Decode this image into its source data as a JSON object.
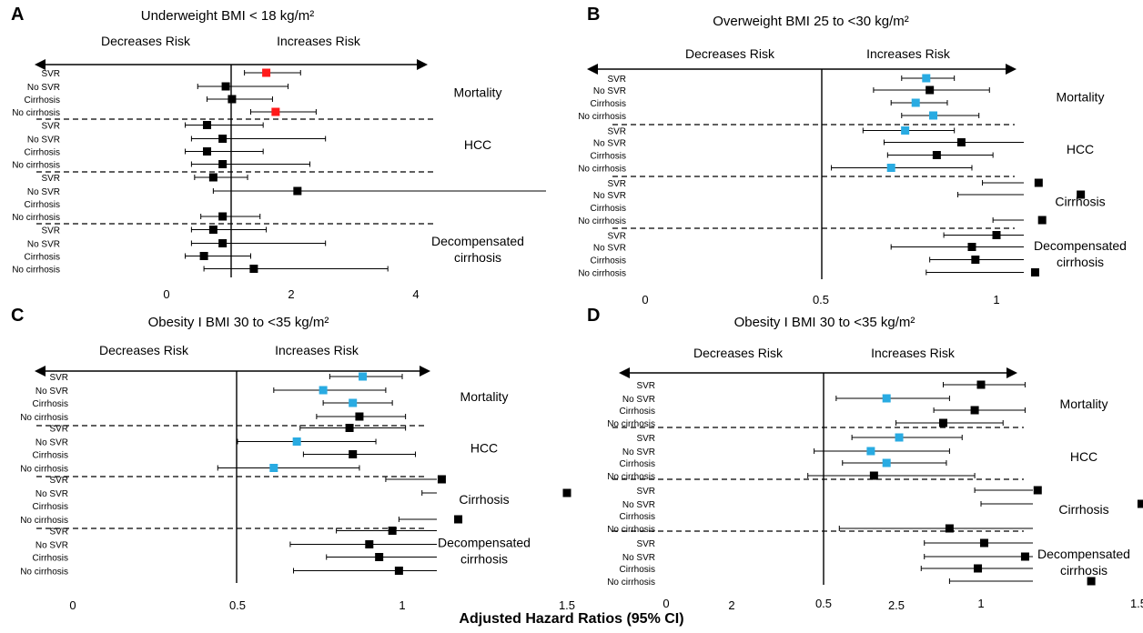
{
  "figure": {
    "xlabel": "Adjusted Hazard Ratios (95% CI)",
    "decreases_label": "Decreases Risk",
    "increases_label": "Increases Risk"
  },
  "colors": {
    "significant": "#ff1a1a",
    "highlight": "#29abe2",
    "default": "#000000"
  },
  "chart_data": [
    {
      "type": "forest",
      "panel": "A",
      "title": "Underweight BMI < 18 kg/m²",
      "xticks": [
        0,
        2,
        4
      ],
      "xlim": [
        0,
        4
      ],
      "reference": 1,
      "groups": [
        {
          "name": "Mortality",
          "rows": [
            {
              "label": "SVR",
              "value": 1.6,
              "lo": 1.25,
              "hi": 2.15,
              "color": "red"
            },
            {
              "label": "No SVR",
              "value": 0.95,
              "lo": 0.5,
              "hi": 1.95,
              "color": "black"
            },
            {
              "label": "Cirrhosis",
              "value": 1.05,
              "lo": 0.65,
              "hi": 1.7,
              "color": "black"
            },
            {
              "label": "No cirrhosis",
              "value": 1.75,
              "lo": 1.35,
              "hi": 2.4,
              "color": "red"
            }
          ]
        },
        {
          "name": "HCC",
          "rows": [
            {
              "label": "SVR",
              "value": 0.65,
              "lo": 0.3,
              "hi": 1.55,
              "color": "black"
            },
            {
              "label": "No SVR",
              "value": 0.9,
              "lo": 0.4,
              "hi": 2.55,
              "color": "black"
            },
            {
              "label": "Cirrhosis",
              "value": 0.65,
              "lo": 0.3,
              "hi": 1.55,
              "color": "black"
            },
            {
              "label": "No cirrhosis",
              "value": 0.9,
              "lo": 0.4,
              "hi": 2.3,
              "color": "black"
            }
          ]
        },
        {
          "name": "",
          "rows": [
            {
              "label": "SVR",
              "value": 0.75,
              "lo": 0.45,
              "hi": 1.3,
              "color": "black"
            },
            {
              "label": "No SVR",
              "value": 2.1,
              "lo": 0.75,
              "hi": 6.2,
              "color": "black"
            },
            {
              "label": "Cirrhosis",
              "value": null,
              "lo": null,
              "hi": null,
              "color": "black"
            },
            {
              "label": "No cirrhosis",
              "value": 0.9,
              "lo": 0.55,
              "hi": 1.5,
              "color": "black"
            }
          ]
        },
        {
          "name": "Decompensated cirrhosis",
          "rows": [
            {
              "label": "SVR",
              "value": 0.75,
              "lo": 0.4,
              "hi": 1.6,
              "color": "black"
            },
            {
              "label": "No SVR",
              "value": 0.9,
              "lo": 0.4,
              "hi": 2.55,
              "color": "black"
            },
            {
              "label": "Cirrhosis",
              "value": 0.6,
              "lo": 0.3,
              "hi": 1.35,
              "color": "black"
            },
            {
              "label": "No cirrhosis",
              "value": 1.4,
              "lo": 0.6,
              "hi": 3.55,
              "color": "black"
            }
          ]
        }
      ]
    },
    {
      "type": "forest",
      "panel": "B",
      "title": "Overweight BMI 25 to <30 kg/m²",
      "xticks": [
        0,
        0.5,
        1,
        1.5,
        2,
        2.5
      ],
      "xlim": [
        0,
        2.5
      ],
      "reference": 1,
      "groups": [
        {
          "name": "Mortality",
          "rows": [
            {
              "label": "SVR",
              "value": 0.8,
              "lo": 0.73,
              "hi": 0.88,
              "color": "blue"
            },
            {
              "label": "No SVR",
              "value": 0.81,
              "lo": 0.65,
              "hi": 0.98,
              "color": "black"
            },
            {
              "label": "Cirrhosis",
              "value": 0.77,
              "lo": 0.7,
              "hi": 0.86,
              "color": "blue"
            },
            {
              "label": "No cirrhosis",
              "value": 0.82,
              "lo": 0.73,
              "hi": 0.95,
              "color": "blue"
            }
          ]
        },
        {
          "name": "HCC",
          "rows": [
            {
              "label": "SVR",
              "value": 0.74,
              "lo": 0.62,
              "hi": 0.88,
              "color": "blue"
            },
            {
              "label": "No SVR",
              "value": 0.9,
              "lo": 0.68,
              "hi": 1.19,
              "color": "black"
            },
            {
              "label": "Cirrhosis",
              "value": 0.83,
              "lo": 0.69,
              "hi": 0.99,
              "color": "black"
            },
            {
              "label": "No cirrhosis",
              "value": 0.7,
              "lo": 0.53,
              "hi": 0.93,
              "color": "blue"
            }
          ]
        },
        {
          "name": "Cirrhosis",
          "rows": [
            {
              "label": "SVR",
              "value": 1.12,
              "lo": 0.96,
              "hi": 1.31,
              "color": "black"
            },
            {
              "label": "No SVR",
              "value": 1.24,
              "lo": 0.89,
              "hi": 1.74,
              "color": "black"
            },
            {
              "label": "Cirrhosis",
              "value": null,
              "lo": null,
              "hi": null,
              "color": "black"
            },
            {
              "label": "No cirrhosis",
              "value": 1.13,
              "lo": 0.99,
              "hi": 1.3,
              "color": "black"
            }
          ]
        },
        {
          "name": "Decompensated cirrhosis",
          "rows": [
            {
              "label": "SVR",
              "value": 1.0,
              "lo": 0.85,
              "hi": 1.2,
              "color": "black"
            },
            {
              "label": "No SVR",
              "value": 0.93,
              "lo": 0.7,
              "hi": 1.26,
              "color": "black"
            },
            {
              "label": "Cirrhosis",
              "value": 0.94,
              "lo": 0.81,
              "hi": 1.1,
              "color": "black"
            },
            {
              "label": "No cirrhosis",
              "value": 1.11,
              "lo": 0.8,
              "hi": 1.56,
              "color": "black"
            }
          ]
        }
      ]
    },
    {
      "type": "forest",
      "panel": "C",
      "title": "Obesity I BMI 30 to <35 kg/m²",
      "xticks": [
        0,
        0.5,
        1,
        1.5,
        2,
        2.5
      ],
      "xlim": [
        0,
        2.5
      ],
      "reference": 1,
      "groups": [
        {
          "name": "Mortality",
          "rows": [
            {
              "label": "SVR",
              "value": 0.88,
              "lo": 0.78,
              "hi": 1.0,
              "color": "blue"
            },
            {
              "label": "No SVR",
              "value": 0.76,
              "lo": 0.61,
              "hi": 0.95,
              "color": "blue"
            },
            {
              "label": "Cirrhosis",
              "value": 0.85,
              "lo": 0.76,
              "hi": 0.97,
              "color": "blue"
            },
            {
              "label": "No cirrhosis",
              "value": 0.87,
              "lo": 0.74,
              "hi": 1.01,
              "color": "black"
            }
          ]
        },
        {
          "name": "HCC",
          "rows": [
            {
              "label": "SVR",
              "value": 0.84,
              "lo": 0.69,
              "hi": 1.01,
              "color": "black"
            },
            {
              "label": "No SVR",
              "value": 0.68,
              "lo": 0.5,
              "hi": 0.92,
              "color": "blue"
            },
            {
              "label": "Cirrhosis",
              "value": 0.85,
              "lo": 0.7,
              "hi": 1.04,
              "color": "black"
            },
            {
              "label": "No cirrhosis",
              "value": 0.61,
              "lo": 0.44,
              "hi": 0.87,
              "color": "blue"
            }
          ]
        },
        {
          "name": "Cirrhosis",
          "rows": [
            {
              "label": "SVR",
              "value": 1.12,
              "lo": 0.95,
              "hi": 1.34,
              "color": "black"
            },
            {
              "label": "No SVR",
              "value": 1.5,
              "lo": 1.06,
              "hi": 2.12,
              "color": "black"
            },
            {
              "label": "Cirrhosis",
              "value": null,
              "lo": null,
              "hi": null,
              "color": "black"
            },
            {
              "label": "No cirrhosis",
              "value": 1.17,
              "lo": 0.99,
              "hi": 1.38,
              "color": "black"
            }
          ]
        },
        {
          "name": "Decompensated cirrhosis",
          "rows": [
            {
              "label": "SVR",
              "value": 0.97,
              "lo": 0.8,
              "hi": 1.17,
              "color": "black"
            },
            {
              "label": "No SVR",
              "value": 0.9,
              "lo": 0.66,
              "hi": 1.22,
              "color": "black"
            },
            {
              "label": "Cirrhosis",
              "value": 0.93,
              "lo": 0.77,
              "hi": 1.11,
              "color": "black"
            },
            {
              "label": "No cirrhosis",
              "value": 0.99,
              "lo": 0.67,
              "hi": 1.46,
              "color": "black"
            }
          ]
        }
      ]
    },
    {
      "type": "forest",
      "panel": "D",
      "title": "Obesity I BMI 30 to <35 kg/m²",
      "xticks": [
        0,
        0.5,
        1,
        1.5,
        2,
        2.5
      ],
      "xlim": [
        0,
        2.5
      ],
      "reference": 1,
      "groups": [
        {
          "name": "Mortality",
          "rows": [
            {
              "label": "SVR",
              "value": 1.0,
              "lo": 0.88,
              "hi": 1.14,
              "color": "black"
            },
            {
              "label": "No SVR",
              "value": 0.7,
              "lo": 0.54,
              "hi": 0.9,
              "color": "blue"
            },
            {
              "label": "Cirrhosis",
              "value": 0.98,
              "lo": 0.85,
              "hi": 1.14,
              "color": "black"
            },
            {
              "label": "No cirrhosis",
              "value": 0.88,
              "lo": 0.73,
              "hi": 1.07,
              "color": "black"
            }
          ]
        },
        {
          "name": "HCC",
          "rows": [
            {
              "label": "SVR",
              "value": 0.74,
              "lo": 0.59,
              "hi": 0.94,
              "color": "blue"
            },
            {
              "label": "No SVR",
              "value": 0.65,
              "lo": 0.47,
              "hi": 0.9,
              "color": "blue"
            },
            {
              "label": "Cirrhosis",
              "value": 0.7,
              "lo": 0.56,
              "hi": 0.89,
              "color": "blue"
            },
            {
              "label": "No cirrhosis",
              "value": 0.66,
              "lo": 0.45,
              "hi": 0.98,
              "color": "black"
            }
          ]
        },
        {
          "name": "Cirrhosis",
          "rows": [
            {
              "label": "SVR",
              "value": 1.18,
              "lo": 0.98,
              "hi": 1.45,
              "color": "black"
            },
            {
              "label": "No SVR",
              "value": 1.51,
              "lo": 1.0,
              "hi": 2.3,
              "color": "black"
            },
            {
              "label": "Cirrhosis",
              "value": null,
              "lo": null,
              "hi": null,
              "color": "black"
            },
            {
              "label": "No cirrhosis",
              "value": 0.9,
              "lo": 0.55,
              "hi": 1.48,
              "color": "black"
            }
          ]
        },
        {
          "name": "Decompensated cirrhosis",
          "rows": [
            {
              "label": "SVR",
              "value": 1.01,
              "lo": 0.82,
              "hi": 1.25,
              "color": "black"
            },
            {
              "label": "No SVR",
              "value": 1.14,
              "lo": 0.82,
              "hi": 1.58,
              "color": "black"
            },
            {
              "label": "Cirrhosis",
              "value": 0.99,
              "lo": 0.81,
              "hi": 1.21,
              "color": "black"
            },
            {
              "label": "No cirrhosis",
              "value": 1.35,
              "lo": 0.9,
              "hi": 2.04,
              "color": "black"
            }
          ]
        }
      ]
    }
  ]
}
